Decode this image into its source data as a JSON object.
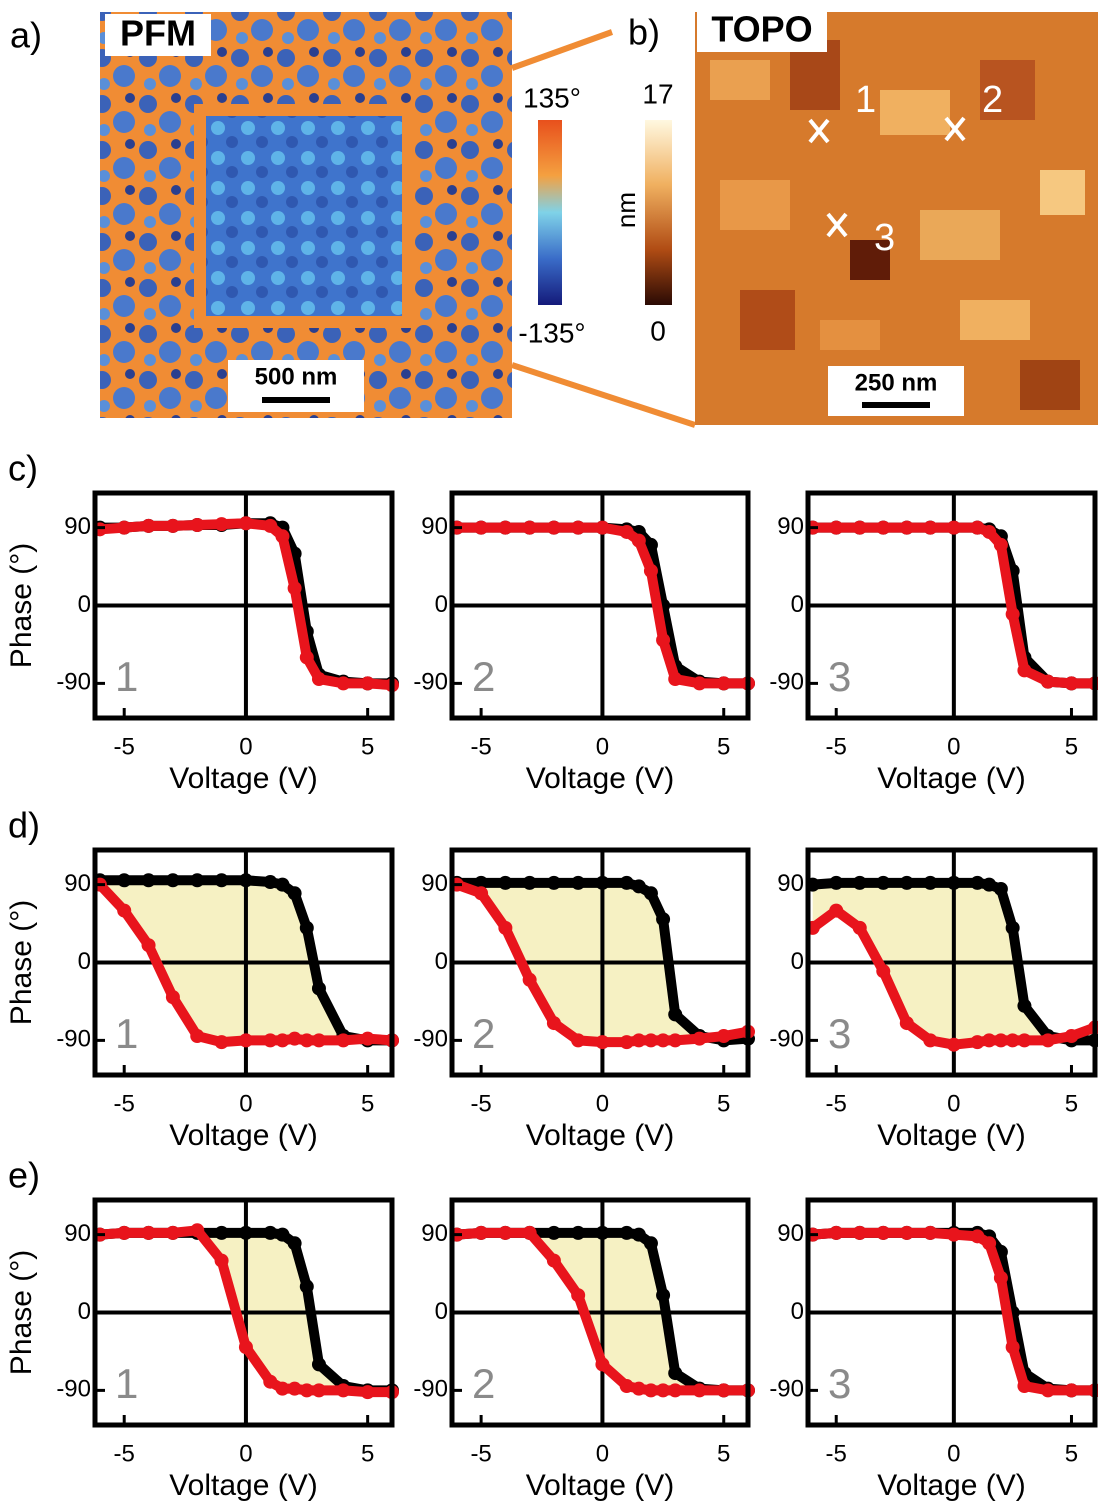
{
  "panels": {
    "a": {
      "label": "a)",
      "title": "PFM",
      "scale_bar": "500 nm",
      "colorbar_max": "135°",
      "colorbar_min": "-135°"
    },
    "b": {
      "label": "b)",
      "title": "TOPO",
      "scale_bar": "250 nm",
      "colorbar_max": 17,
      "colorbar_min": 0,
      "colorbar_unit": "nm",
      "points": [
        "1",
        "2",
        "3"
      ]
    }
  },
  "chart_data": [
    {
      "type": "scatter",
      "row_label": "c)",
      "number_label": "1",
      "ylabel": "Phase (°)",
      "xlabel": "Voltage (V)",
      "xlim": [
        -6.2,
        6
      ],
      "ylim": [
        -130,
        130
      ],
      "xticks": [
        -5,
        0,
        5
      ],
      "yticks": [
        90,
        0,
        -90
      ],
      "x": [
        -6,
        -5,
        -4,
        -3,
        -2,
        -1,
        0,
        1,
        1.5,
        2,
        2.5,
        3,
        4,
        5,
        6
      ],
      "series": [
        {
          "color": "#000000",
          "values": [
            90,
            90,
            92,
            92,
            93,
            93,
            95,
            95,
            90,
            60,
            -30,
            -80,
            -88,
            -90,
            -90
          ]
        },
        {
          "color": "#e8141c",
          "values": [
            88,
            90,
            92,
            92,
            93,
            94,
            95,
            92,
            80,
            20,
            -60,
            -85,
            -90,
            -90,
            -92
          ]
        }
      ]
    },
    {
      "type": "scatter",
      "number_label": "2",
      "xlabel": "Voltage (V)",
      "xlim": [
        -6.2,
        6
      ],
      "ylim": [
        -130,
        130
      ],
      "xticks": [
        -5,
        0,
        5
      ],
      "yticks": [
        90,
        0,
        -90
      ],
      "x": [
        -6,
        -5,
        -4,
        -3,
        -2,
        -1,
        0,
        1,
        1.5,
        2,
        2.5,
        3,
        4,
        5,
        6
      ],
      "series": [
        {
          "color": "#000000",
          "values": [
            90,
            90,
            90,
            90,
            90,
            90,
            90,
            88,
            85,
            70,
            0,
            -70,
            -88,
            -90,
            -90
          ]
        },
        {
          "color": "#e8141c",
          "values": [
            90,
            90,
            90,
            90,
            90,
            90,
            90,
            85,
            75,
            40,
            -40,
            -85,
            -90,
            -90,
            -90
          ]
        }
      ]
    },
    {
      "type": "scatter",
      "number_label": "3",
      "xlabel": "Voltage (V)",
      "xlim": [
        -6.2,
        6
      ],
      "ylim": [
        -130,
        130
      ],
      "xticks": [
        -5,
        0,
        5
      ],
      "yticks": [
        90,
        0,
        -90
      ],
      "x": [
        -6,
        -5,
        -4,
        -3,
        -2,
        -1,
        0,
        1,
        1.5,
        2,
        2.5,
        3,
        4,
        5,
        6
      ],
      "series": [
        {
          "color": "#000000",
          "values": [
            90,
            90,
            90,
            90,
            90,
            90,
            90,
            90,
            88,
            80,
            40,
            -60,
            -88,
            -90,
            -90
          ]
        },
        {
          "color": "#e8141c",
          "values": [
            90,
            90,
            90,
            90,
            90,
            90,
            90,
            90,
            85,
            70,
            -10,
            -75,
            -88,
            -90,
            -90
          ]
        }
      ]
    },
    {
      "type": "scatter",
      "row_label": "d)",
      "number_label": "1",
      "ylabel": "Phase (°)",
      "xlabel": "Voltage (V)",
      "xlim": [
        -6.2,
        6
      ],
      "ylim": [
        -130,
        130
      ],
      "xticks": [
        -5,
        0,
        5
      ],
      "yticks": [
        90,
        0,
        -90
      ],
      "shade_color": "#f6f1c3",
      "x": [
        -6,
        -5,
        -4,
        -3,
        -2,
        -1,
        0,
        1,
        1.5,
        2,
        2.5,
        3,
        4,
        5,
        6
      ],
      "series": [
        {
          "color": "#000000",
          "values": [
            95,
            95,
            95,
            95,
            95,
            95,
            95,
            93,
            90,
            80,
            40,
            -30,
            -85,
            -90,
            -90
          ]
        },
        {
          "color": "#e8141c",
          "values": [
            90,
            60,
            20,
            -40,
            -85,
            -92,
            -90,
            -90,
            -90,
            -88,
            -90,
            -90,
            -90,
            -88,
            -90
          ]
        }
      ]
    },
    {
      "type": "scatter",
      "number_label": "2",
      "xlabel": "Voltage (V)",
      "xlim": [
        -6.2,
        6
      ],
      "ylim": [
        -130,
        130
      ],
      "xticks": [
        -5,
        0,
        5
      ],
      "yticks": [
        90,
        0,
        -90
      ],
      "shade_color": "#f6f1c3",
      "x": [
        -6,
        -5,
        -4,
        -3,
        -2,
        -1,
        0,
        1,
        1.5,
        2,
        2.5,
        3,
        4,
        5,
        6
      ],
      "series": [
        {
          "color": "#000000",
          "values": [
            92,
            92,
            92,
            92,
            92,
            92,
            92,
            92,
            88,
            80,
            50,
            -60,
            -85,
            -90,
            -88
          ]
        },
        {
          "color": "#e8141c",
          "values": [
            90,
            80,
            40,
            -20,
            -70,
            -90,
            -92,
            -92,
            -90,
            -90,
            -90,
            -90,
            -88,
            -85,
            -80
          ]
        }
      ]
    },
    {
      "type": "scatter",
      "number_label": "3",
      "xlabel": "Voltage (V)",
      "xlim": [
        -6.2,
        6
      ],
      "ylim": [
        -130,
        130
      ],
      "xticks": [
        -5,
        0,
        5
      ],
      "yticks": [
        90,
        0,
        -90
      ],
      "shade_color": "#f6f1c3",
      "x": [
        -6,
        -5,
        -4,
        -3,
        -2,
        -1,
        0,
        1,
        1.5,
        2,
        2.5,
        3,
        4,
        5,
        6
      ],
      "series": [
        {
          "color": "#000000",
          "values": [
            90,
            92,
            92,
            92,
            92,
            92,
            92,
            92,
            90,
            85,
            40,
            -50,
            -85,
            -90,
            -90
          ]
        },
        {
          "color": "#e8141c",
          "values": [
            40,
            60,
            40,
            -10,
            -70,
            -90,
            -95,
            -92,
            -90,
            -90,
            -90,
            -90,
            -90,
            -85,
            -75
          ]
        }
      ]
    },
    {
      "type": "scatter",
      "row_label": "e)",
      "number_label": "1",
      "ylabel": "Phase (°)",
      "xlabel": "Voltage (V)",
      "xlim": [
        -6.2,
        6
      ],
      "ylim": [
        -130,
        130
      ],
      "xticks": [
        -5,
        0,
        5
      ],
      "yticks": [
        90,
        0,
        -90
      ],
      "shade_color": "#f6f1c3",
      "x": [
        -6,
        -5,
        -4,
        -3,
        -2,
        -1,
        0,
        1,
        1.5,
        2,
        2.5,
        3,
        4,
        5,
        6
      ],
      "series": [
        {
          "color": "#000000",
          "values": [
            90,
            92,
            92,
            92,
            92,
            92,
            92,
            92,
            90,
            80,
            30,
            -60,
            -85,
            -90,
            -90
          ]
        },
        {
          "color": "#e8141c",
          "values": [
            90,
            92,
            92,
            92,
            95,
            60,
            -40,
            -80,
            -88,
            -88,
            -90,
            -90,
            -90,
            -92,
            -92
          ]
        }
      ]
    },
    {
      "type": "scatter",
      "number_label": "2",
      "xlabel": "Voltage (V)",
      "xlim": [
        -6.2,
        6
      ],
      "ylim": [
        -130,
        130
      ],
      "xticks": [
        -5,
        0,
        5
      ],
      "yticks": [
        90,
        0,
        -90
      ],
      "shade_color": "#f6f1c3",
      "x": [
        -6,
        -5,
        -4,
        -3,
        -2,
        -1,
        0,
        1,
        1.5,
        2,
        2.5,
        3,
        4,
        5,
        6
      ],
      "series": [
        {
          "color": "#000000",
          "values": [
            90,
            92,
            92,
            92,
            92,
            92,
            92,
            92,
            90,
            80,
            20,
            -70,
            -88,
            -90,
            -90
          ]
        },
        {
          "color": "#e8141c",
          "values": [
            90,
            92,
            92,
            92,
            60,
            20,
            -60,
            -85,
            -88,
            -90,
            -90,
            -90,
            -90,
            -90,
            -90
          ]
        }
      ]
    },
    {
      "type": "scatter",
      "number_label": "3",
      "xlabel": "Voltage (V)",
      "xlim": [
        -6.2,
        6
      ],
      "ylim": [
        -130,
        130
      ],
      "xticks": [
        -5,
        0,
        5
      ],
      "yticks": [
        90,
        0,
        -90
      ],
      "x": [
        -6,
        -5,
        -4,
        -3,
        -2,
        -1,
        0,
        1,
        1.5,
        2,
        2.5,
        3,
        4,
        5,
        6
      ],
      "series": [
        {
          "color": "#000000",
          "values": [
            90,
            92,
            92,
            92,
            92,
            92,
            92,
            92,
            88,
            70,
            0,
            -70,
            -88,
            -90,
            -90
          ]
        },
        {
          "color": "#e8141c",
          "values": [
            90,
            92,
            92,
            92,
            92,
            92,
            90,
            88,
            80,
            40,
            -40,
            -85,
            -90,
            -90,
            -90
          ]
        }
      ]
    }
  ]
}
